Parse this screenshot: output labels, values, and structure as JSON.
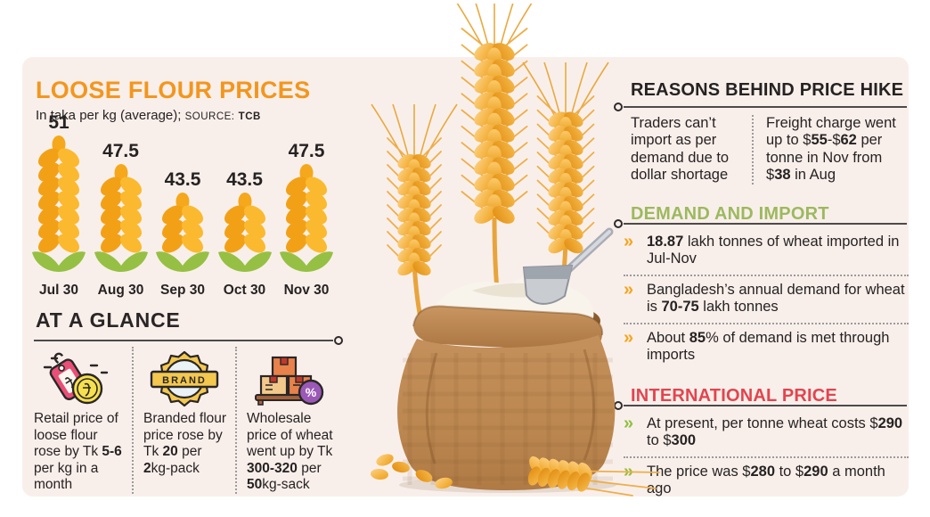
{
  "colors": {
    "panel_bg": "#F9EFEA",
    "title_orange": "#F3961E",
    "text_dark": "#262223",
    "green_header": "#9CB95F",
    "red_header": "#E2454F",
    "bullet_orange": "#F5A41C",
    "bullet_green": "#8FBF3F",
    "wheat_gold": "#F5A81C",
    "leaf_green": "#95C044"
  },
  "glyphs": {
    "chevron_bullet": "»"
  },
  "chart": {
    "title": "LOOSE FLOUR PRICES",
    "subtitle_prefix": "In taka per kg (average); ",
    "source_label": "SOURCE:",
    "source_value": "TCB"
  },
  "chart_data": {
    "type": "bar",
    "categories": [
      "Jul 30",
      "Aug 30",
      "Sep 30",
      "Oct 30",
      "Nov 30"
    ],
    "values": [
      51,
      47.5,
      43.5,
      43.5,
      47.5
    ],
    "title": "LOOSE FLOUR PRICES",
    "xlabel": "",
    "ylabel": "Taka per kg (average)",
    "source": "TCB",
    "bar_style": "wheat-stalk pictogram, height proportional to value",
    "value_labels_shown": true,
    "legend": "none",
    "grid": false
  },
  "at_a_glance": {
    "title": "AT A GLANCE",
    "items": [
      {
        "icon": "taka-price-tag-coin-icon",
        "segments": [
          {
            "t": "Retail price of loose flour rose by Tk "
          },
          {
            "t": "5-6",
            "b": true
          },
          {
            "t": " per kg in a month"
          }
        ]
      },
      {
        "icon": "brand-badge-icon",
        "badge_label": "BRAND",
        "segments": [
          {
            "t": "Branded flour price rose by Tk "
          },
          {
            "t": "20",
            "b": true
          },
          {
            "t": " per "
          },
          {
            "t": "2",
            "b": true
          },
          {
            "t": "kg-pack"
          }
        ]
      },
      {
        "icon": "boxes-percent-icon",
        "percent_label": "%",
        "segments": [
          {
            "t": "Wholesale price of wheat went up by Tk "
          },
          {
            "t": "300-320",
            "b": true
          },
          {
            "t": " per "
          },
          {
            "t": "50",
            "b": true
          },
          {
            "t": "kg-sack"
          }
        ]
      }
    ]
  },
  "reasons": {
    "title": "REASONS BEHIND PRICE HIKE",
    "columns": [
      {
        "segments": [
          {
            "t": "Traders can’t import as per demand due to dollar shortage"
          }
        ]
      },
      {
        "segments": [
          {
            "t": "Freight charge went up to $"
          },
          {
            "t": "55",
            "b": true
          },
          {
            "t": "-$"
          },
          {
            "t": "62",
            "b": true
          },
          {
            "t": " per tonne in Nov from $"
          },
          {
            "t": "38",
            "b": true
          },
          {
            "t": " in Aug"
          }
        ]
      }
    ]
  },
  "demand": {
    "title": "DEMAND AND IMPORT",
    "bullets": [
      {
        "segments": [
          {
            "t": "18.87",
            "b": true
          },
          {
            "t": " lakh tonnes of wheat imported in Jul-Nov"
          }
        ]
      },
      {
        "segments": [
          {
            "t": "Bangladesh’s annual demand for wheat is "
          },
          {
            "t": "70-75",
            "b": true
          },
          {
            "t": " lakh tonnes"
          }
        ]
      },
      {
        "segments": [
          {
            "t": "About "
          },
          {
            "t": "85",
            "b": true
          },
          {
            "t": "% of demand is met through imports"
          }
        ]
      }
    ]
  },
  "international": {
    "title": "INTERNATIONAL PRICE",
    "bullets": [
      {
        "segments": [
          {
            "t": "At present, per tonne wheat costs $"
          },
          {
            "t": "290",
            "b": true
          },
          {
            "t": " to $"
          },
          {
            "t": "300",
            "b": true
          }
        ]
      },
      {
        "segments": [
          {
            "t": "The price was $"
          },
          {
            "t": "280",
            "b": true
          },
          {
            "t": " to $"
          },
          {
            "t": "290",
            "b": true
          },
          {
            "t": " a month ago"
          }
        ]
      }
    ]
  }
}
